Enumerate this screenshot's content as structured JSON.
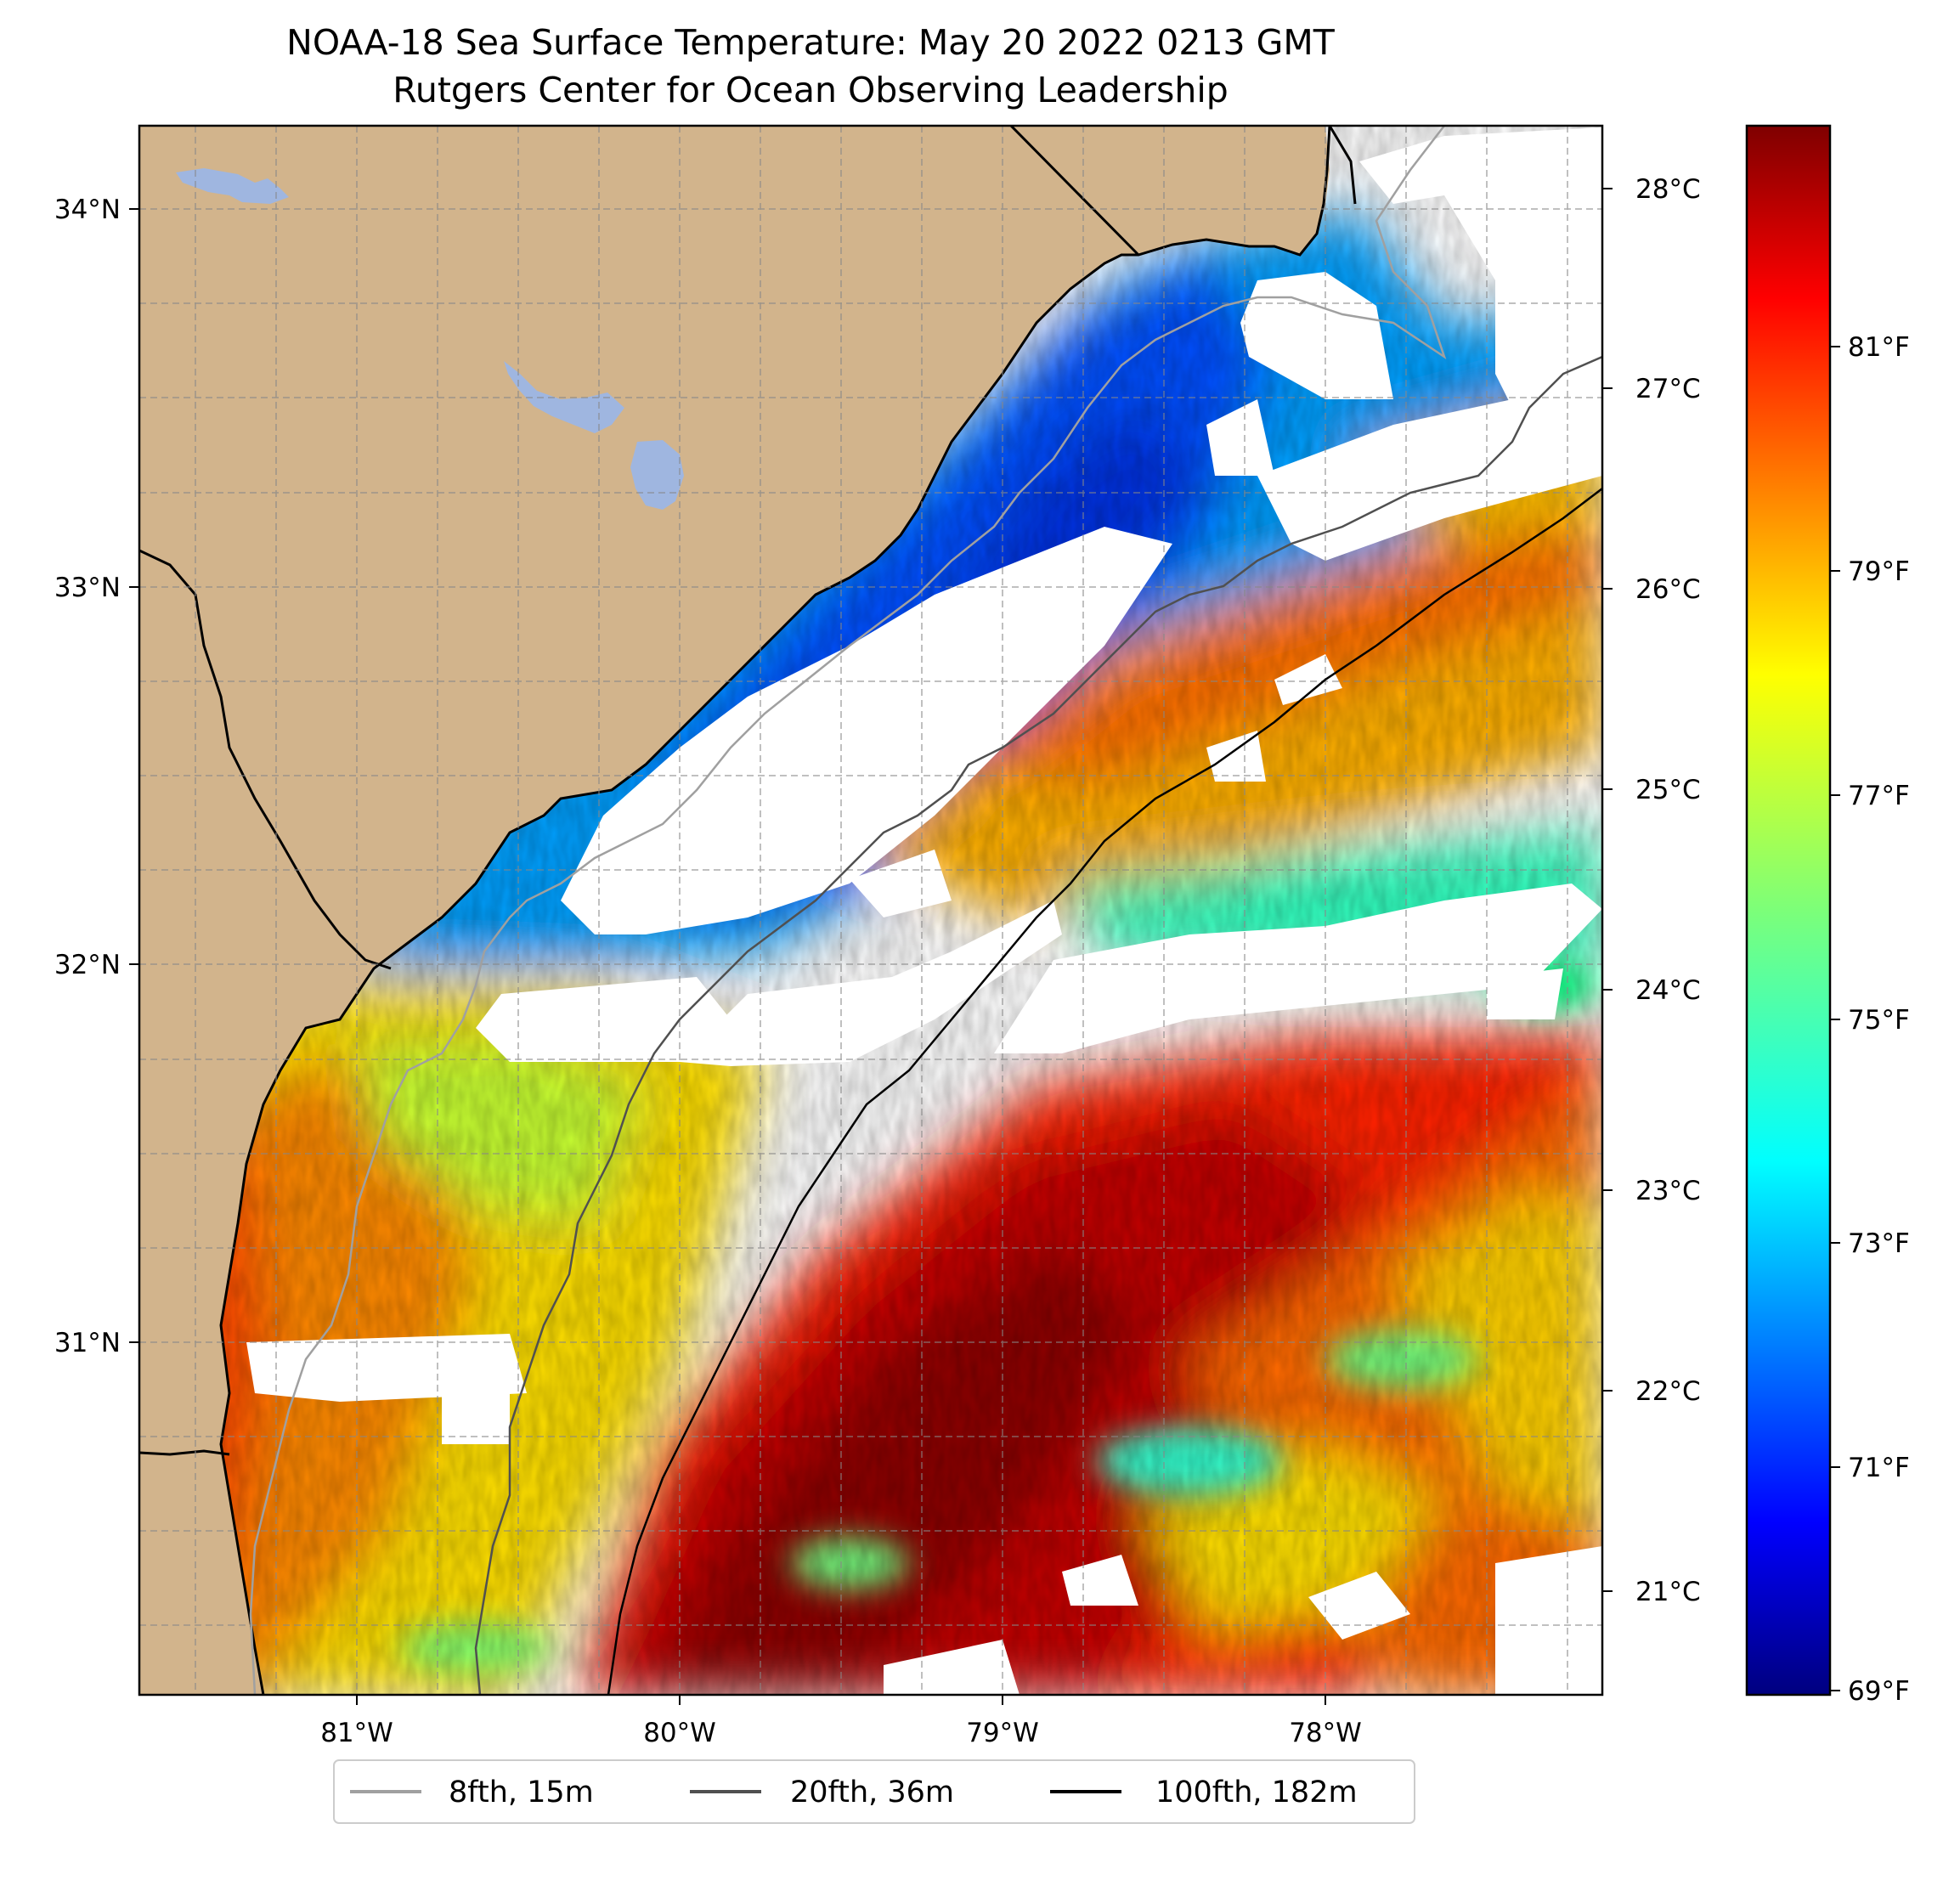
{
  "title": "NOAA-18 Sea Surface Temperature: May 20 2022 0213 GMT",
  "subtitle": "Rutgers Center for Ocean Observing Leadership",
  "map": {
    "lon_range": [
      -81.68,
      -77.12
    ],
    "lat_range": [
      30.07,
      34.22
    ],
    "lon_ticks": [
      "81°W",
      "80°W",
      "79°W",
      "78°W"
    ],
    "lat_ticks": [
      "34°N",
      "33°N",
      "32°N",
      "31°N"
    ],
    "land_color": "#d2b48c",
    "lake_color": "#9fb6e0",
    "no_data_color": "#ffffff",
    "grid": true,
    "colormap": "jet"
  },
  "colorbar": {
    "celsius_ticks": [
      "28°C",
      "27°C",
      "26°C",
      "25°C",
      "24°C",
      "23°C",
      "22°C",
      "21°C"
    ],
    "fahrenheit_ticks": [
      "81°F",
      "79°F",
      "77°F",
      "75°F",
      "73°F",
      "71°F",
      "69°F"
    ],
    "range_f": [
      69,
      83
    ]
  },
  "legend": {
    "placement": "bottom-center",
    "items": [
      {
        "label": "8fth, 15m",
        "color": "#a0a0a0"
      },
      {
        "label": "20fth, 36m",
        "color": "#505050"
      },
      {
        "label": "100fth, 182m",
        "color": "#000000"
      }
    ]
  }
}
